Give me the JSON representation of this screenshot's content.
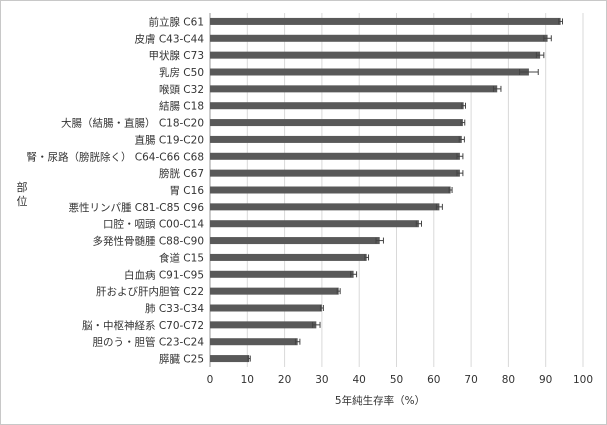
{
  "chart_data": {
    "type": "bar",
    "orientation": "horizontal",
    "title": "",
    "xlabel": "5年純生存率（%）",
    "ylabel": "部位",
    "xlim": [
      0,
      100
    ],
    "xticks": [
      0,
      10,
      20,
      30,
      40,
      50,
      60,
      70,
      80,
      90,
      100
    ],
    "grid": true,
    "legend": "none",
    "bar_color": "#595959",
    "error_bars": true,
    "categories": [
      "前立腺 C61",
      "皮膚 C43-C44",
      "甲状腺 C73",
      "乳房 C50",
      "喉頭 C32",
      "結腸 C18",
      "大腸（結腸・直腸） C18-C20",
      "直腸 C19-C20",
      "腎・尿路（膀胱除く） C64-C66 C68",
      "膀胱 C67",
      "胃 C16",
      "悪性リンパ腫 C81-C85 C96",
      "口腔・咽頭 C00-C14",
      "多発性骨髄腫 C88-C90",
      "食道 C15",
      "白血病 C91-C95",
      "肝および肝内胆管 C22",
      "肺 C33-C34",
      "脳・中枢神経系 C70-C72",
      "胆のう・胆管 C23-C24",
      "膵臓 C25"
    ],
    "values": [
      94.0,
      90.5,
      88.5,
      85.5,
      77.0,
      68.0,
      67.8,
      67.5,
      67.0,
      67.0,
      64.5,
      61.5,
      56.0,
      45.5,
      42.0,
      38.5,
      34.5,
      30.0,
      28.5,
      23.5,
      10.5
    ],
    "error": [
      0.5,
      1.0,
      1.0,
      2.5,
      1.0,
      0.5,
      0.5,
      0.7,
      0.8,
      0.8,
      0.4,
      0.8,
      0.7,
      1.0,
      0.5,
      0.8,
      0.4,
      0.4,
      1.0,
      0.6,
      0.3
    ]
  }
}
